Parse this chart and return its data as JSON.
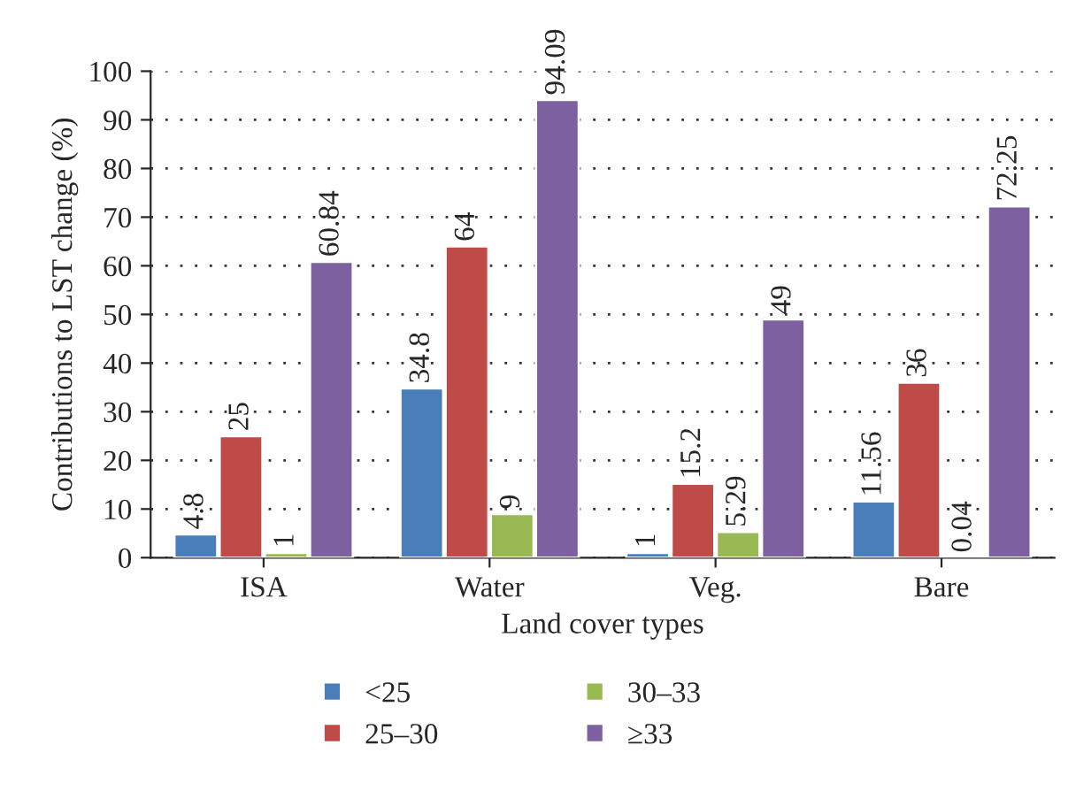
{
  "chart_data": {
    "type": "bar",
    "xlabel": "Land cover types",
    "ylabel": "Contributions to LST change (%)",
    "categories": [
      "ISA",
      "Water",
      "Veg.",
      "Bare"
    ],
    "series": [
      {
        "name": "<25",
        "color": "#4a7ebb",
        "values": [
          4.8,
          34.8,
          1,
          11.56
        ]
      },
      {
        "name": "25–30",
        "color": "#be4b48",
        "values": [
          25,
          64,
          15.2,
          36
        ]
      },
      {
        "name": "30–33",
        "color": "#98b954",
        "values": [
          1,
          9,
          5.29,
          0.04
        ]
      },
      {
        "name": "≥33",
        "color": "#7d60a0",
        "values": [
          60.84,
          94.09,
          49,
          72.25
        ]
      }
    ],
    "ylim": [
      0,
      100
    ],
    "yticks": [
      0,
      10,
      20,
      30,
      40,
      50,
      60,
      70,
      80,
      90,
      100
    ],
    "grid": "y",
    "legend": "bottom",
    "data_labels": true
  }
}
